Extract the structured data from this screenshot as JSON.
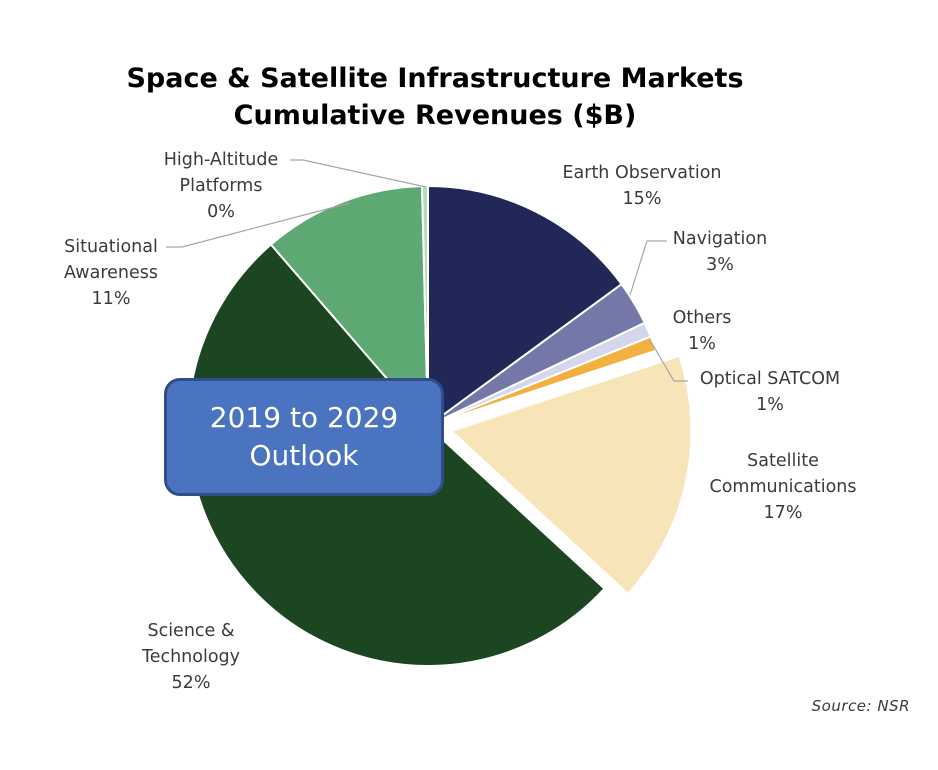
{
  "chart_data": {
    "type": "pie",
    "title": [
      "Space & Satellite Infrastructure Markets",
      "Cumulative Revenues ($B)"
    ],
    "slices": [
      {
        "name": "Earth Observation",
        "value": 15,
        "label": "15%",
        "color": "#212757"
      },
      {
        "name": "Navigation",
        "value": 3,
        "label": "3%",
        "color": "#7478a8"
      },
      {
        "name": "Others",
        "value": 1,
        "label": "1%",
        "color": "#d4d6ec"
      },
      {
        "name": "Optical SATCOM",
        "value": 1,
        "label": "1%",
        "color": "#f2b13e"
      },
      {
        "name": "Satellite Communications",
        "value": 17,
        "label": "17%",
        "color": "#f7e4b8"
      },
      {
        "name": "Science & Technology",
        "value": 52,
        "label": "52%",
        "color": "#1c4522"
      },
      {
        "name": "Situational Awareness",
        "value": 11,
        "label": "11%",
        "color": "#5da873"
      },
      {
        "name": "High-Altitude Platforms",
        "value": 0.4,
        "label": "0%",
        "color": "#b5ddb8"
      }
    ],
    "exploded": [
      "Satellite Communications"
    ],
    "legend": "none"
  },
  "callout": {
    "lines": [
      "2019 to 2029",
      "Outlook"
    ]
  },
  "source": "Source: NSR"
}
